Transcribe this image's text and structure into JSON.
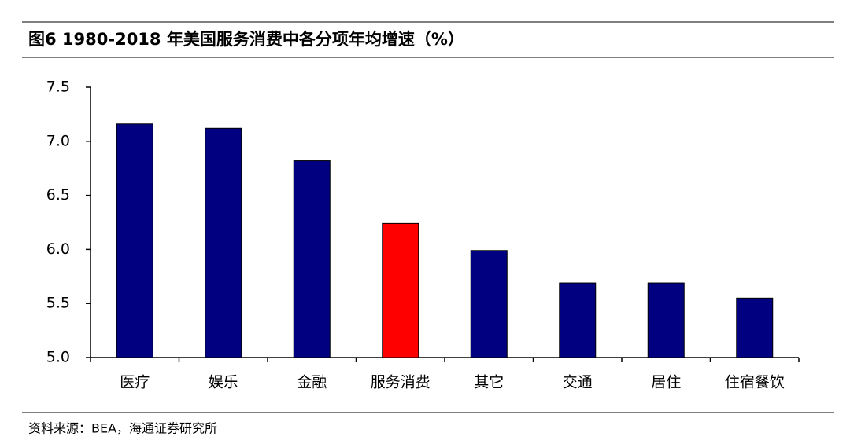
{
  "chart_data": {
    "type": "bar",
    "title": "图6 1980-2018 年美国服务消费中各分项年均增速（%）",
    "categories": [
      "医疗",
      "娱乐",
      "金融",
      "服务消费",
      "其它",
      "交通",
      "居住",
      "住宿餐饮"
    ],
    "values": [
      7.16,
      7.12,
      6.82,
      6.24,
      5.99,
      5.69,
      5.69,
      5.55
    ],
    "colors": [
      "#000080",
      "#000080",
      "#000080",
      "#ff0000",
      "#000080",
      "#000080",
      "#000080",
      "#000080"
    ],
    "ylim": [
      5.0,
      7.5
    ],
    "yticks": [
      {
        "value": 5,
        "label": "5.0"
      },
      5.5,
      {
        "value": 6,
        "label": "6.0"
      },
      6.5,
      {
        "value": 7,
        "label": "7.0"
      },
      7.5
    ],
    "grid": false,
    "source": "资料来源：BEA，海通证券研究所"
  }
}
